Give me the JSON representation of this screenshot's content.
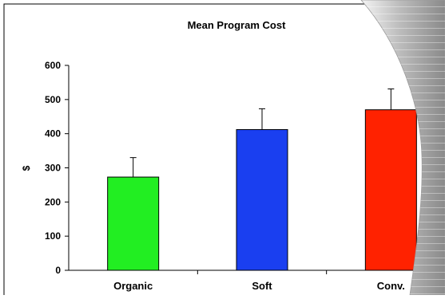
{
  "chart_data": {
    "type": "bar",
    "title": "Mean Program Cost",
    "ylabel": "$",
    "xlabel": "",
    "categories": [
      "Organic",
      "Soft",
      "Conv."
    ],
    "values": [
      273,
      412,
      470
    ],
    "error_plus": [
      57,
      61,
      61
    ],
    "colors": [
      "#22ee22",
      "#1a3ff0",
      "#ff2200"
    ],
    "ylim": [
      0,
      600
    ],
    "yticks": [
      "0",
      "100",
      "200",
      "300",
      "400",
      "500",
      "600"
    ],
    "grid": false,
    "legend": "none"
  }
}
